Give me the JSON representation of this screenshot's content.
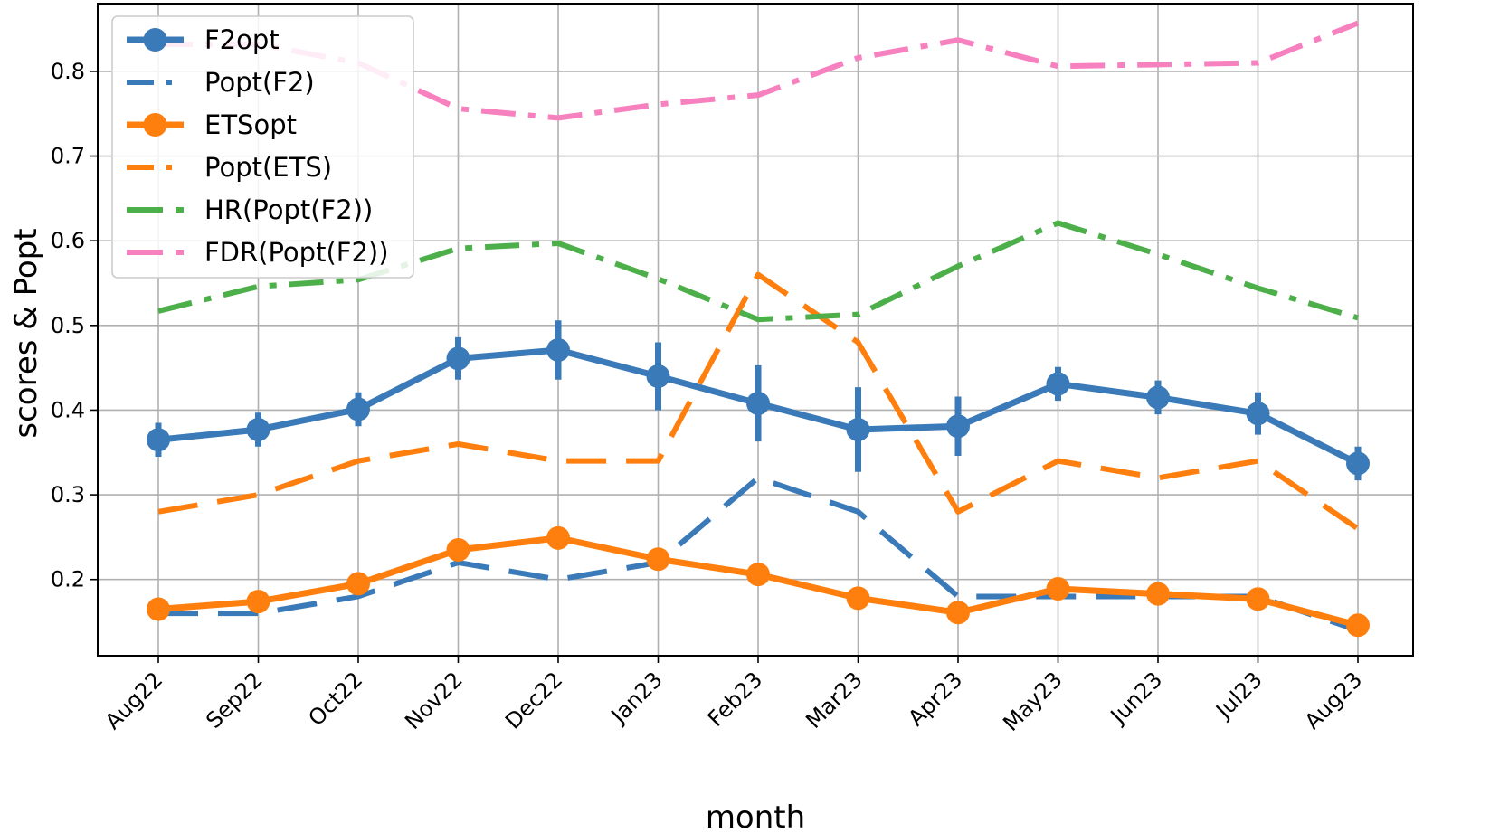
{
  "chart_data": {
    "type": "line",
    "title": "",
    "xlabel": "month",
    "ylabel": "scores & Popt",
    "ylim": [
      0.11,
      0.88
    ],
    "yticks": [
      0.2,
      0.3,
      0.4,
      0.5,
      0.6,
      0.7,
      0.8
    ],
    "ytick_labels": [
      "0.2",
      "0.3",
      "0.4",
      "0.5",
      "0.6",
      "0.7",
      "0.8"
    ],
    "grid": true,
    "legend_position": "top-left",
    "categories": [
      "Aug22",
      "Sep22",
      "Oct22",
      "Nov22",
      "Dec22",
      "Jan23",
      "Feb23",
      "Mar23",
      "Apr23",
      "May23",
      "Jun23",
      "Jul23",
      "Aug23"
    ],
    "series": [
      {
        "name": "F2opt",
        "color": "#3a7ab8",
        "style": "solid-marker",
        "values": [
          0.365,
          0.377,
          0.401,
          0.461,
          0.471,
          0.44,
          0.408,
          0.377,
          0.381,
          0.431,
          0.415,
          0.396,
          0.337
        ],
        "error": [
          0.02,
          0.02,
          0.02,
          0.025,
          0.035,
          0.04,
          0.045,
          0.05,
          0.035,
          0.02,
          0.02,
          0.025,
          0.02
        ]
      },
      {
        "name": "Popt(F2)",
        "color": "#3a7ab8",
        "style": "dashed",
        "values": [
          0.16,
          0.16,
          0.18,
          0.22,
          0.2,
          0.22,
          0.32,
          0.28,
          0.18,
          0.18,
          0.18,
          0.18,
          0.14
        ]
      },
      {
        "name": "ETSopt",
        "color": "#ff7f0e",
        "style": "solid-marker",
        "values": [
          0.165,
          0.174,
          0.195,
          0.235,
          0.249,
          0.224,
          0.206,
          0.178,
          0.161,
          0.189,
          0.183,
          0.177,
          0.146
        ],
        "error": [
          0.005,
          0.005,
          0.005,
          0.008,
          0.008,
          0.006,
          0.006,
          0.005,
          0.005,
          0.005,
          0.005,
          0.005,
          0.005
        ]
      },
      {
        "name": "Popt(ETS)",
        "color": "#ff7f0e",
        "style": "dashed",
        "values": [
          0.28,
          0.3,
          0.34,
          0.36,
          0.34,
          0.34,
          0.56,
          0.48,
          0.28,
          0.34,
          0.32,
          0.34,
          0.26
        ]
      },
      {
        "name": "HR(Popt(F2))",
        "color": "#4daf4a",
        "style": "dashdot",
        "values": [
          0.517,
          0.546,
          0.554,
          0.591,
          0.597,
          0.555,
          0.507,
          0.513,
          0.57,
          0.621,
          0.584,
          0.544,
          0.509
        ]
      },
      {
        "name": "FDR(Popt(F2))",
        "color": "#f781bf",
        "style": "dashdot",
        "values": [
          0.832,
          0.832,
          0.81,
          0.756,
          0.745,
          0.761,
          0.772,
          0.816,
          0.837,
          0.806,
          0.808,
          0.81,
          0.857
        ]
      }
    ]
  }
}
